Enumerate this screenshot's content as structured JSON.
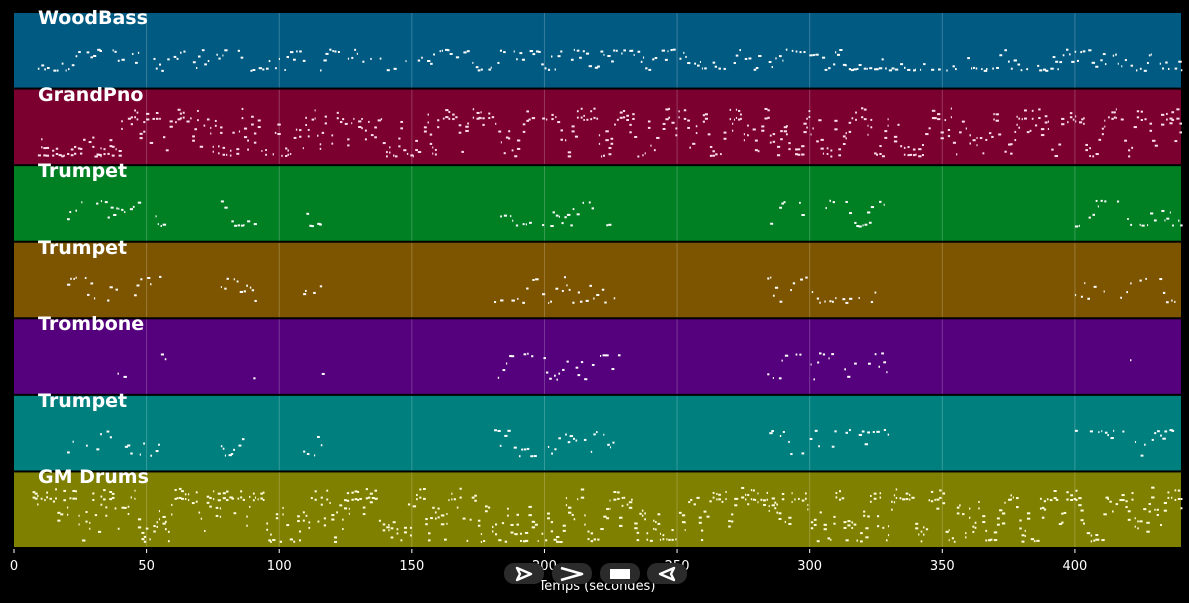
{
  "timeline": {
    "x_min": 0,
    "x_max": 440,
    "tick_values": [
      0,
      50,
      100,
      150,
      200,
      250,
      300,
      350,
      400
    ],
    "tick_labels": [
      "0",
      "50",
      "100",
      "150",
      "200",
      "250",
      "300",
      "350",
      "400"
    ],
    "xlabel": "Temps (secondes)"
  },
  "tracks": [
    {
      "name": "WoodBass",
      "color": "#005a82",
      "note_color": "#ffffff",
      "segments": [
        [
          9,
          440
        ]
      ],
      "density": 0.75,
      "spread": 0.35
    },
    {
      "name": "GrandPno",
      "color": "#7b0030",
      "note_color": "#ffe0ea",
      "segments": [
        [
          9,
          440
        ]
      ],
      "density": 0.9,
      "spread": 0.7
    },
    {
      "name": "Trumpet",
      "color": "#007f23",
      "note_color": "#ffffff",
      "segments": [
        [
          20,
          57
        ],
        [
          78,
          91
        ],
        [
          109,
          117
        ],
        [
          181,
          228
        ],
        [
          284,
          330
        ],
        [
          400,
          440
        ]
      ],
      "density": 0.55,
      "spread": 0.45
    },
    {
      "name": "Trumpet",
      "color": "#7d5500",
      "note_color": "#ffffff",
      "segments": [
        [
          20,
          57
        ],
        [
          78,
          91
        ],
        [
          109,
          117
        ],
        [
          181,
          228
        ],
        [
          284,
          330
        ],
        [
          400,
          440
        ]
      ],
      "density": 0.55,
      "spread": 0.45
    },
    {
      "name": "Trombone",
      "color": "#55007d",
      "note_color": "#ffffff",
      "segments": [
        [
          38,
          42
        ],
        [
          54,
          57
        ],
        [
          88,
          91
        ],
        [
          114,
          117
        ],
        [
          181,
          228
        ],
        [
          284,
          330
        ],
        [
          420,
          423
        ]
      ],
      "density": 0.55,
      "spread": 0.45
    },
    {
      "name": "Trumpet",
      "color": "#007f7f",
      "note_color": "#ffffff",
      "segments": [
        [
          20,
          57
        ],
        [
          78,
          91
        ],
        [
          109,
          117
        ],
        [
          181,
          228
        ],
        [
          284,
          330
        ],
        [
          400,
          440
        ]
      ],
      "density": 0.55,
      "spread": 0.45
    },
    {
      "name": "GM Drums",
      "color": "#7f7f00",
      "note_color": "#ffffe0",
      "segments": [
        [
          7,
          440
        ]
      ],
      "density": 1.0,
      "spread": 0.8
    }
  ],
  "controls": [
    {
      "name": "play",
      "icon": "play-outline-icon"
    },
    {
      "name": "fast-forward",
      "icon": "fast-forward-icon"
    },
    {
      "name": "stop",
      "icon": "stop-icon"
    },
    {
      "name": "rewind",
      "icon": "rewind-icon"
    }
  ]
}
